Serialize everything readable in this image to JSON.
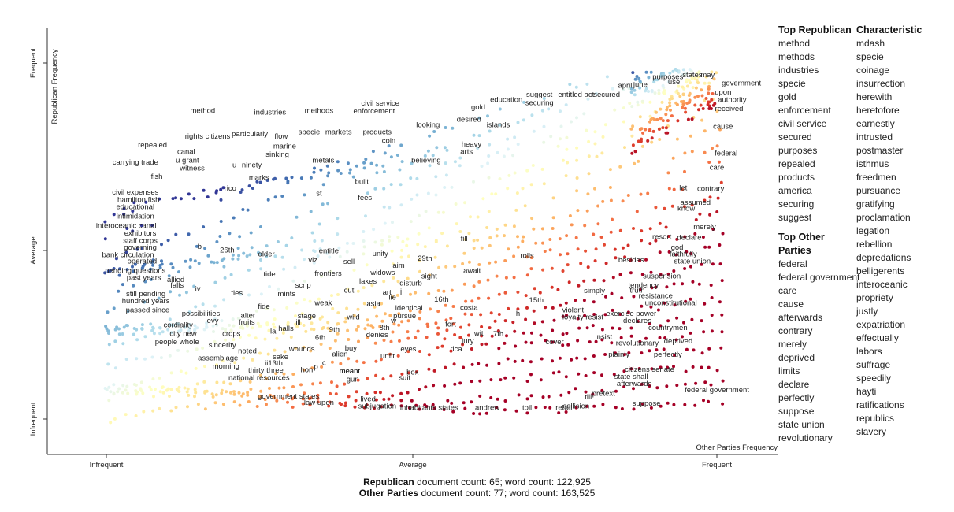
{
  "chart_data": {
    "type": "scatter",
    "xlabel": "Other Parties Frequency",
    "ylabel": "Republican Frequency",
    "x_ticks": [
      "Infrequent",
      "Average",
      "Frequent"
    ],
    "y_ticks": [
      "Infrequent",
      "Average",
      "Frequent"
    ],
    "color_scale": [
      "#313695",
      "#4575b4",
      "#74add1",
      "#abd9e9",
      "#e0f3f8",
      "#ffffbf",
      "#fee090",
      "#fdae61",
      "#f46d43",
      "#d73027",
      "#a50026"
    ],
    "labels": [
      {
        "t": "method",
        "x": 0.16,
        "y": 0.86
      },
      {
        "t": "industries",
        "x": 0.27,
        "y": 0.855
      },
      {
        "t": "methods",
        "x": 0.35,
        "y": 0.86
      },
      {
        "t": "civil service",
        "x": 0.45,
        "y": 0.88
      },
      {
        "t": "enforcement",
        "x": 0.44,
        "y": 0.858
      },
      {
        "t": "gold",
        "x": 0.61,
        "y": 0.87
      },
      {
        "t": "education",
        "x": 0.656,
        "y": 0.89
      },
      {
        "t": "suggest",
        "x": 0.71,
        "y": 0.905
      },
      {
        "t": "securing",
        "x": 0.71,
        "y": 0.882
      },
      {
        "t": "entitled act",
        "x": 0.77,
        "y": 0.905
      },
      {
        "t": "secured",
        "x": 0.82,
        "y": 0.905
      },
      {
        "t": "april",
        "x": 0.85,
        "y": 0.93
      },
      {
        "t": "june",
        "x": 0.875,
        "y": 0.933
      },
      {
        "t": "purposes",
        "x": 0.92,
        "y": 0.955
      },
      {
        "t": "use",
        "x": 0.93,
        "y": 0.94
      },
      {
        "t": "states",
        "x": 0.96,
        "y": 0.96
      },
      {
        "t": "may",
        "x": 0.985,
        "y": 0.96
      },
      {
        "t": "government",
        "x": 1.04,
        "y": 0.937
      },
      {
        "t": "upon",
        "x": 1.01,
        "y": 0.912
      },
      {
        "t": "authority",
        "x": 1.025,
        "y": 0.89
      },
      {
        "t": "received",
        "x": 1.02,
        "y": 0.865
      },
      {
        "t": "cause",
        "x": 1.01,
        "y": 0.815
      },
      {
        "t": "federal",
        "x": 1.015,
        "y": 0.74
      },
      {
        "t": "care",
        "x": 1.0,
        "y": 0.7
      },
      {
        "t": "contrary",
        "x": 0.99,
        "y": 0.64
      },
      {
        "t": "let",
        "x": 0.945,
        "y": 0.643
      },
      {
        "t": "assumed",
        "x": 0.965,
        "y": 0.602
      },
      {
        "t": "know",
        "x": 0.95,
        "y": 0.585
      },
      {
        "t": "merely",
        "x": 0.98,
        "y": 0.533
      },
      {
        "t": "resort",
        "x": 0.91,
        "y": 0.506
      },
      {
        "t": "declare",
        "x": 0.955,
        "y": 0.503
      },
      {
        "t": "god",
        "x": 0.935,
        "y": 0.476
      },
      {
        "t": "faithfully",
        "x": 0.945,
        "y": 0.457
      },
      {
        "t": "state union",
        "x": 0.96,
        "y": 0.437
      },
      {
        "t": "besides",
        "x": 0.86,
        "y": 0.44
      },
      {
        "t": "suspension",
        "x": 0.91,
        "y": 0.395
      },
      {
        "t": "tendency",
        "x": 0.88,
        "y": 0.37
      },
      {
        "t": "truth",
        "x": 0.87,
        "y": 0.355
      },
      {
        "t": "resistance",
        "x": 0.9,
        "y": 0.34
      },
      {
        "t": "unconstitutional",
        "x": 0.925,
        "y": 0.32
      },
      {
        "t": "simply",
        "x": 0.8,
        "y": 0.354
      },
      {
        "t": "violent",
        "x": 0.765,
        "y": 0.3
      },
      {
        "t": "loyalty",
        "x": 0.765,
        "y": 0.28
      },
      {
        "t": "resist",
        "x": 0.8,
        "y": 0.28
      },
      {
        "t": "exercise power",
        "x": 0.86,
        "y": 0.29
      },
      {
        "t": "declares",
        "x": 0.87,
        "y": 0.27
      },
      {
        "t": "countrymen",
        "x": 0.92,
        "y": 0.25
      },
      {
        "t": "insist",
        "x": 0.815,
        "y": 0.225
      },
      {
        "t": "revolutionary",
        "x": 0.87,
        "y": 0.207
      },
      {
        "t": "deprived",
        "x": 0.937,
        "y": 0.212
      },
      {
        "t": "cover",
        "x": 0.735,
        "y": 0.21
      },
      {
        "t": "plainly",
        "x": 0.84,
        "y": 0.175
      },
      {
        "t": "perfectly",
        "x": 0.92,
        "y": 0.175
      },
      {
        "t": "citizens senate",
        "x": 0.89,
        "y": 0.133
      },
      {
        "t": "state shall",
        "x": 0.86,
        "y": 0.113
      },
      {
        "t": "afterwards",
        "x": 0.865,
        "y": 0.093
      },
      {
        "t": "federal government",
        "x": 1.0,
        "y": 0.075
      },
      {
        "t": "pretext",
        "x": 0.815,
        "y": 0.065
      },
      {
        "t": "till",
        "x": 0.79,
        "y": 0.055
      },
      {
        "t": "suppose",
        "x": 0.885,
        "y": 0.038
      },
      {
        "t": "collision",
        "x": 0.77,
        "y": 0.03
      },
      {
        "t": "rebel",
        "x": 0.75,
        "y": 0.025
      },
      {
        "t": "toil",
        "x": 0.69,
        "y": 0.025
      },
      {
        "t": "andrew",
        "x": 0.625,
        "y": 0.025
      },
      {
        "t": "inhabitants states",
        "x": 0.53,
        "y": 0.025
      },
      {
        "t": "lived",
        "x": 0.43,
        "y": 0.05
      },
      {
        "t": "subjugation",
        "x": 0.445,
        "y": 0.03
      },
      {
        "t": "law upon",
        "x": 0.35,
        "y": 0.04
      },
      {
        "t": "government states",
        "x": 0.3,
        "y": 0.058
      },
      {
        "t": "meant",
        "x": 0.4,
        "y": 0.128
      },
      {
        "t": "gun",
        "x": 0.405,
        "y": 0.105
      },
      {
        "t": "box",
        "x": 0.503,
        "y": 0.125
      },
      {
        "t": "suit",
        "x": 0.49,
        "y": 0.11
      },
      {
        "t": "rica",
        "x": 0.574,
        "y": 0.19
      },
      {
        "t": "jury",
        "x": 0.593,
        "y": 0.212
      },
      {
        "t": "wit",
        "x": 0.611,
        "y": 0.235
      },
      {
        "t": "7th",
        "x": 0.643,
        "y": 0.232
      },
      {
        "t": "fort",
        "x": 0.565,
        "y": 0.26
      },
      {
        "t": "costa",
        "x": 0.595,
        "y": 0.306
      },
      {
        "t": "h",
        "x": 0.675,
        "y": 0.29
      },
      {
        "t": "15th",
        "x": 0.705,
        "y": 0.327
      },
      {
        "t": "16th",
        "x": 0.55,
        "y": 0.33
      },
      {
        "t": "identical",
        "x": 0.497,
        "y": 0.305
      },
      {
        "t": "pursue",
        "x": 0.49,
        "y": 0.283
      },
      {
        "t": "w",
        "x": 0.472,
        "y": 0.27
      },
      {
        "t": "8th",
        "x": 0.457,
        "y": 0.25
      },
      {
        "t": "denies",
        "x": 0.445,
        "y": 0.23
      },
      {
        "t": "eyes",
        "x": 0.496,
        "y": 0.19
      },
      {
        "t": "unfit",
        "x": 0.462,
        "y": 0.17
      },
      {
        "t": "buy",
        "x": 0.402,
        "y": 0.193
      },
      {
        "t": "alien",
        "x": 0.384,
        "y": 0.176
      },
      {
        "t": "c",
        "x": 0.358,
        "y": 0.152
      },
      {
        "t": "p",
        "x": 0.345,
        "y": 0.14
      },
      {
        "t": "hon",
        "x": 0.33,
        "y": 0.132
      },
      {
        "t": "meant",
        "x": 0.4,
        "y": 0.128
      },
      {
        "t": "wounds",
        "x": 0.322,
        "y": 0.19
      },
      {
        "t": "6th",
        "x": 0.352,
        "y": 0.222
      },
      {
        "t": "9th",
        "x": 0.375,
        "y": 0.245
      },
      {
        "t": "stage",
        "x": 0.33,
        "y": 0.283
      },
      {
        "t": "ill",
        "x": 0.316,
        "y": 0.266
      },
      {
        "t": "halls",
        "x": 0.296,
        "y": 0.248
      },
      {
        "t": "la",
        "x": 0.275,
        "y": 0.24
      },
      {
        "t": "wild",
        "x": 0.406,
        "y": 0.28
      },
      {
        "t": "asia",
        "x": 0.439,
        "y": 0.318
      },
      {
        "t": "weak",
        "x": 0.357,
        "y": 0.32
      },
      {
        "t": "cut",
        "x": 0.399,
        "y": 0.355
      },
      {
        "t": "art",
        "x": 0.461,
        "y": 0.35
      },
      {
        "t": "lie",
        "x": 0.47,
        "y": 0.335
      },
      {
        "t": "j",
        "x": 0.484,
        "y": 0.352
      },
      {
        "t": "lakes",
        "x": 0.43,
        "y": 0.38
      },
      {
        "t": "disturb",
        "x": 0.5,
        "y": 0.375
      },
      {
        "t": "sight",
        "x": 0.53,
        "y": 0.395
      },
      {
        "t": "widows",
        "x": 0.454,
        "y": 0.405
      },
      {
        "t": "aim",
        "x": 0.48,
        "y": 0.425
      },
      {
        "t": "frontiers",
        "x": 0.365,
        "y": 0.403
      },
      {
        "t": "sell",
        "x": 0.399,
        "y": 0.436
      },
      {
        "t": "scrip",
        "x": 0.324,
        "y": 0.37
      },
      {
        "t": "mints",
        "x": 0.297,
        "y": 0.345
      },
      {
        "t": "tide",
        "x": 0.269,
        "y": 0.4
      },
      {
        "t": "fide",
        "x": 0.26,
        "y": 0.31
      },
      {
        "t": "alter",
        "x": 0.234,
        "y": 0.284
      },
      {
        "t": "fruits",
        "x": 0.232,
        "y": 0.266
      },
      {
        "t": "crops",
        "x": 0.207,
        "y": 0.233
      },
      {
        "t": "ties",
        "x": 0.216,
        "y": 0.347
      },
      {
        "t": "sincerity",
        "x": 0.192,
        "y": 0.201
      },
      {
        "t": "noted",
        "x": 0.233,
        "y": 0.185
      },
      {
        "t": "assemblage",
        "x": 0.185,
        "y": 0.165
      },
      {
        "t": "sake",
        "x": 0.287,
        "y": 0.168
      },
      {
        "t": "morning",
        "x": 0.198,
        "y": 0.142
      },
      {
        "t": "ii13th",
        "x": 0.276,
        "y": 0.15
      },
      {
        "t": "thirty three",
        "x": 0.263,
        "y": 0.131
      },
      {
        "t": "national resources",
        "x": 0.252,
        "y": 0.11
      },
      {
        "t": "people whole",
        "x": 0.118,
        "y": 0.21
      },
      {
        "t": "city new",
        "x": 0.128,
        "y": 0.233
      },
      {
        "t": "cordiality",
        "x": 0.12,
        "y": 0.258
      },
      {
        "t": "levy",
        "x": 0.175,
        "y": 0.27
      },
      {
        "t": "possibilities",
        "x": 0.157,
        "y": 0.29
      },
      {
        "t": "passed since",
        "x": 0.07,
        "y": 0.3
      },
      {
        "t": "hundred years",
        "x": 0.067,
        "y": 0.325
      },
      {
        "t": "still pending",
        "x": 0.067,
        "y": 0.345
      },
      {
        "t": "iv",
        "x": 0.152,
        "y": 0.36
      },
      {
        "t": "falls",
        "x": 0.118,
        "y": 0.37
      },
      {
        "t": "allied",
        "x": 0.116,
        "y": 0.385
      },
      {
        "t": "past years",
        "x": 0.064,
        "y": 0.39
      },
      {
        "t": "pending questions",
        "x": 0.05,
        "y": 0.41
      },
      {
        "t": "operated",
        "x": 0.061,
        "y": 0.437
      },
      {
        "t": "bank circulation",
        "x": 0.038,
        "y": 0.455
      },
      {
        "t": "governing",
        "x": 0.058,
        "y": 0.476
      },
      {
        "t": "staff corps",
        "x": 0.058,
        "y": 0.495
      },
      {
        "t": "exhibitors",
        "x": 0.058,
        "y": 0.515
      },
      {
        "t": "interoceanic canal",
        "x": 0.035,
        "y": 0.537
      },
      {
        "t": "intimidation",
        "x": 0.05,
        "y": 0.563
      },
      {
        "t": "educational",
        "x": 0.05,
        "y": 0.59
      },
      {
        "t": "hamilton fish",
        "x": 0.055,
        "y": 0.61
      },
      {
        "t": "civil expenses",
        "x": 0.05,
        "y": 0.63
      },
      {
        "t": "fish",
        "x": 0.085,
        "y": 0.675
      },
      {
        "t": "carrying trade",
        "x": 0.05,
        "y": 0.715
      },
      {
        "t": "witness",
        "x": 0.143,
        "y": 0.698
      },
      {
        "t": "u grant",
        "x": 0.135,
        "y": 0.72
      },
      {
        "t": "canal",
        "x": 0.133,
        "y": 0.745
      },
      {
        "t": "repealed",
        "x": 0.078,
        "y": 0.763
      },
      {
        "t": "rights citizens",
        "x": 0.168,
        "y": 0.788
      },
      {
        "t": "particularly",
        "x": 0.237,
        "y": 0.794
      },
      {
        "t": "flow",
        "x": 0.288,
        "y": 0.788
      },
      {
        "t": "specie",
        "x": 0.334,
        "y": 0.8
      },
      {
        "t": "markets",
        "x": 0.382,
        "y": 0.8
      },
      {
        "t": "products",
        "x": 0.445,
        "y": 0.8
      },
      {
        "t": "coin",
        "x": 0.464,
        "y": 0.775
      },
      {
        "t": "looking",
        "x": 0.528,
        "y": 0.82
      },
      {
        "t": "desired",
        "x": 0.595,
        "y": 0.835
      },
      {
        "t": "islands",
        "x": 0.643,
        "y": 0.82
      },
      {
        "t": "heavy",
        "x": 0.599,
        "y": 0.765
      },
      {
        "t": "arts",
        "x": 0.591,
        "y": 0.745
      },
      {
        "t": "believing",
        "x": 0.525,
        "y": 0.72
      },
      {
        "t": "marine",
        "x": 0.294,
        "y": 0.76
      },
      {
        "t": "sinking",
        "x": 0.282,
        "y": 0.737
      },
      {
        "t": "metals",
        "x": 0.357,
        "y": 0.72
      },
      {
        "t": "ninety",
        "x": 0.24,
        "y": 0.707
      },
      {
        "t": "u",
        "x": 0.212,
        "y": 0.707
      },
      {
        "t": "marks",
        "x": 0.252,
        "y": 0.672
      },
      {
        "t": "built",
        "x": 0.42,
        "y": 0.66
      },
      {
        "t": "rico",
        "x": 0.205,
        "y": 0.642
      },
      {
        "t": "st",
        "x": 0.35,
        "y": 0.627
      },
      {
        "t": "fees",
        "x": 0.425,
        "y": 0.615
      },
      {
        "t": "fill",
        "x": 0.587,
        "y": 0.5
      },
      {
        "t": "b",
        "x": 0.155,
        "y": 0.478
      },
      {
        "t": "26th",
        "x": 0.2,
        "y": 0.468
      },
      {
        "t": "older",
        "x": 0.264,
        "y": 0.457
      },
      {
        "t": "entitle",
        "x": 0.366,
        "y": 0.466
      },
      {
        "t": "viz",
        "x": 0.34,
        "y": 0.44
      },
      {
        "t": "unity",
        "x": 0.45,
        "y": 0.458
      },
      {
        "t": "29th",
        "x": 0.523,
        "y": 0.445
      },
      {
        "t": "rolls",
        "x": 0.69,
        "y": 0.452
      },
      {
        "t": "await",
        "x": 0.6,
        "y": 0.41
      }
    ],
    "footer": {
      "line1_bold": "Republican",
      "line1_rest": " document count: 65; word count: 122,925",
      "line2_bold": "Other Parties",
      "line2_rest": " document count: 77; word count: 163,525"
    }
  },
  "lists": {
    "top_republican_title": "Top Republican",
    "top_republican": [
      "method",
      "methods",
      "industries",
      "specie",
      "gold",
      "enforcement",
      "civil service",
      "secured",
      "purposes",
      "repealed",
      "products",
      "america",
      "securing",
      "suggest"
    ],
    "top_other_title": "Top Other Parties",
    "top_other": [
      "federal",
      "federal government",
      "care",
      "cause",
      "afterwards",
      "contrary",
      "merely",
      "deprived",
      "limits",
      "declare",
      "perfectly",
      "suppose",
      "state union",
      "revolutionary"
    ],
    "characteristic_title": "Characteristic",
    "characteristic": [
      "mdash",
      "specie",
      "coinage",
      "insurrection",
      "herewith",
      "heretofore",
      "earnestly",
      "intrusted",
      "postmaster",
      "isthmus",
      "freedmen",
      "pursuance",
      "gratifying",
      "proclamation",
      "legation",
      "rebellion",
      "depredations",
      "belligerents",
      "interoceanic",
      "propriety",
      "justly",
      "expatriation",
      "effectually",
      "labors",
      "suffrage",
      "speedily",
      "hayti",
      "ratifications",
      "republics",
      "slavery"
    ]
  }
}
